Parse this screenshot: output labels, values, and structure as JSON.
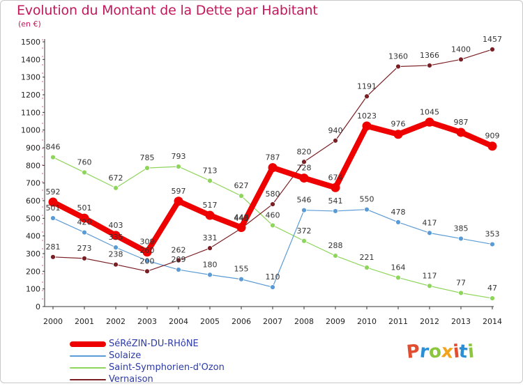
{
  "header": {
    "title": "Evolution du Montant de la Dette par Habitant",
    "unit": "(en €)"
  },
  "chart_data": {
    "type": "line",
    "title": "Evolution du Montant de la Dette par Habitant",
    "ylabel": "(en €)",
    "xlabel": "",
    "x": [
      2000,
      2001,
      2002,
      2003,
      2004,
      2005,
      2006,
      2007,
      2008,
      2009,
      2010,
      2011,
      2012,
      2013,
      2014
    ],
    "ylim": [
      0,
      1500
    ],
    "yticks": [
      0,
      100,
      200,
      300,
      400,
      500,
      600,
      700,
      800,
      900,
      1000,
      1100,
      1200,
      1300,
      1400,
      1500
    ],
    "grid": false,
    "legend_position": "bottom-left",
    "series": [
      {
        "name": "SéRéZIN-DU-RHôNE",
        "color": "#ee0000",
        "values": [
          592,
          501,
          403,
          309,
          597,
          517,
          448,
          787,
          728,
          674,
          1023,
          976,
          1045,
          987,
          909
        ]
      },
      {
        "name": "Solaize",
        "color": "#5b9bd5",
        "values": [
          501,
          420,
          335,
          260,
          209,
          180,
          155,
          110,
          546,
          541,
          550,
          478,
          417,
          385,
          353
        ]
      },
      {
        "name": "Saint-Symphorien-d'Ozon",
        "color": "#8ed55b",
        "values": [
          846,
          760,
          672,
          785,
          793,
          713,
          627,
          460,
          372,
          288,
          221,
          164,
          117,
          77,
          47
        ]
      },
      {
        "name": "Vernaison",
        "color": "#7a1f24",
        "values": [
          281,
          273,
          238,
          200,
          262,
          331,
          443,
          580,
          820,
          940,
          1191,
          1360,
          1366,
          1400,
          1457
        ]
      }
    ]
  },
  "logo": {
    "letters": [
      "P",
      "r",
      "o",
      "x",
      "i",
      "t",
      "i"
    ],
    "colors": [
      "#e24c2f",
      "#2a8fd4",
      "#8cc63f",
      "#f2a31b",
      "#e24c2f",
      "#2a8fd4",
      "#8cc63f"
    ]
  }
}
